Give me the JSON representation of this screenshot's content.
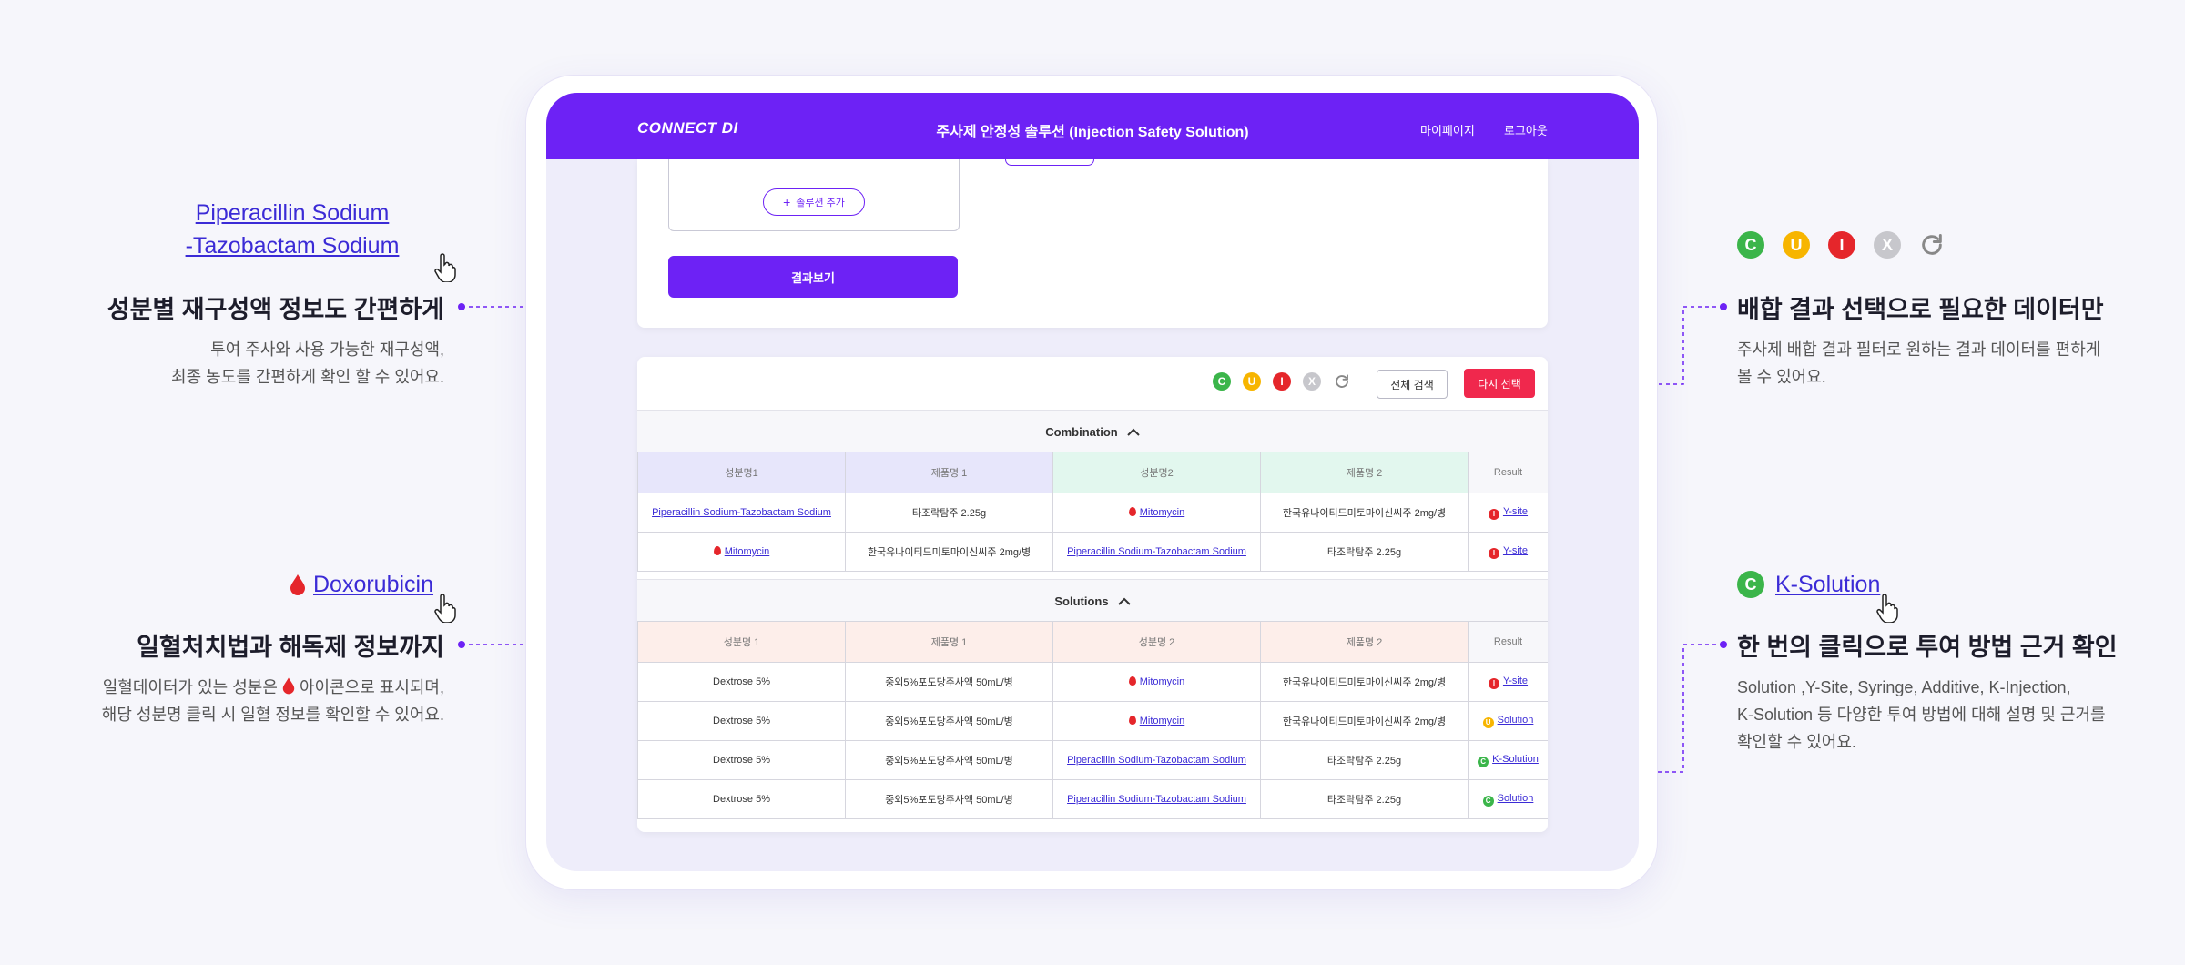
{
  "app": {
    "logo": "CONNECT DI",
    "title": "주사제 안정성 솔루션 (Injection Safety Solution)",
    "nav_mypage": "마이페이지",
    "nav_logout": "로그아웃"
  },
  "form": {
    "add_solution": "솔루션 추가",
    "view_result": "결과보기"
  },
  "toolbar": {
    "filter_c": "C",
    "filter_u": "U",
    "filter_i": "I",
    "filter_x": "X",
    "view_all": "전체 검색",
    "reselect": "다시 선택"
  },
  "combination": {
    "title": "Combination",
    "headers": [
      "성분명1",
      "제품명 1",
      "성분명2",
      "제품명 2",
      "Result"
    ],
    "rows": [
      {
        "ing1": "Piperacillin Sodium-Tazobactam Sodium",
        "prod1": "타조락탐주 2.25g",
        "ing2": "Mitomycin",
        "prod2": "한국유나이티드미토마이신씨주 2mg/병",
        "result_code": "I",
        "result": "Y-site"
      },
      {
        "ing1": "Mitomycin",
        "prod1": "한국유나이티드미토마이신씨주 2mg/병",
        "ing2": "Piperacillin Sodium-Tazobactam Sodium",
        "prod2": "타조락탐주 2.25g",
        "result_code": "I",
        "result": "Y-site"
      }
    ]
  },
  "solutions": {
    "title": "Solutions",
    "headers": [
      "성분명 1",
      "제품명 1",
      "성분명 2",
      "제품명 2",
      "Result"
    ],
    "rows": [
      {
        "ing1": "Dextrose 5%",
        "prod1": "중외5%포도당주사액 50mL/병",
        "ing2": "Mitomycin",
        "prod2": "한국유나이티드미토마이신씨주 2mg/병",
        "result_code": "I",
        "result": "Y-site"
      },
      {
        "ing1": "Dextrose 5%",
        "prod1": "중외5%포도당주사액 50mL/병",
        "ing2": "Mitomycin",
        "prod2": "한국유나이티드미토마이신씨주 2mg/병",
        "result_code": "U",
        "result": "Solution"
      },
      {
        "ing1": "Dextrose 5%",
        "prod1": "중외5%포도당주사액 50mL/병",
        "ing2": "Piperacillin Sodium-Tazobactam Sodium",
        "prod2": "타조락탐주 2.25g",
        "result_code": "C",
        "result": "K-Solution"
      },
      {
        "ing1": "Dextrose 5%",
        "prod1": "중외5%포도당주사액 50mL/병",
        "ing2": "Piperacillin Sodium-Tazobactam Sodium",
        "prod2": "타조락탐주 2.25g",
        "result_code": "C",
        "result": "Solution"
      }
    ]
  },
  "callouts": {
    "left1": {
      "link_line1": "Piperacillin Sodium",
      "link_line2": "-Tazobactam Sodium",
      "title": "성분별 재구성액 정보도 간편하게",
      "desc1": "투여 주사와 사용 가능한 재구성액,",
      "desc2": "최종 농도를 간편하게 확인 할 수 있어요."
    },
    "left2": {
      "link": "Doxorubicin",
      "title": "일혈처치법과 해독제 정보까지",
      "desc1a": "일혈데이터가 있는 성분은",
      "desc1b": "아이콘으로 표시되며,",
      "desc2": "해당 성분명 클릭 시 일혈 정보를 확인할 수 있어요."
    },
    "right1": {
      "title": "배합 결과 선택으로 필요한 데이터만",
      "desc1": "주사제 배합 결과 필터로 원하는 결과 데이터를 편하게",
      "desc2": "볼 수 있어요."
    },
    "right2": {
      "link": "K-Solution",
      "badge": "C",
      "title": "한 번의 클릭으로 투여 방법 근거 확인",
      "desc1": "Solution ,Y-Site, Syringe, Additive, K-Injection,",
      "desc2": "K-Solution 등 다양한 투여 방법에 대해 설명 및 근거를",
      "desc3": "확인할 수 있어요."
    }
  },
  "colors": {
    "brand": "#6d22f5",
    "compatible": "#3bb54a",
    "uncertain": "#f7b500",
    "incompatible": "#e5262b",
    "not_tested": "#c7c7cc",
    "reselect": "#f0284d"
  },
  "icons": {
    "refresh": "refresh-icon",
    "chevron_up": "chevron-up-icon",
    "drop": "blood-drop-icon",
    "pointer": "hand-pointer-icon"
  }
}
